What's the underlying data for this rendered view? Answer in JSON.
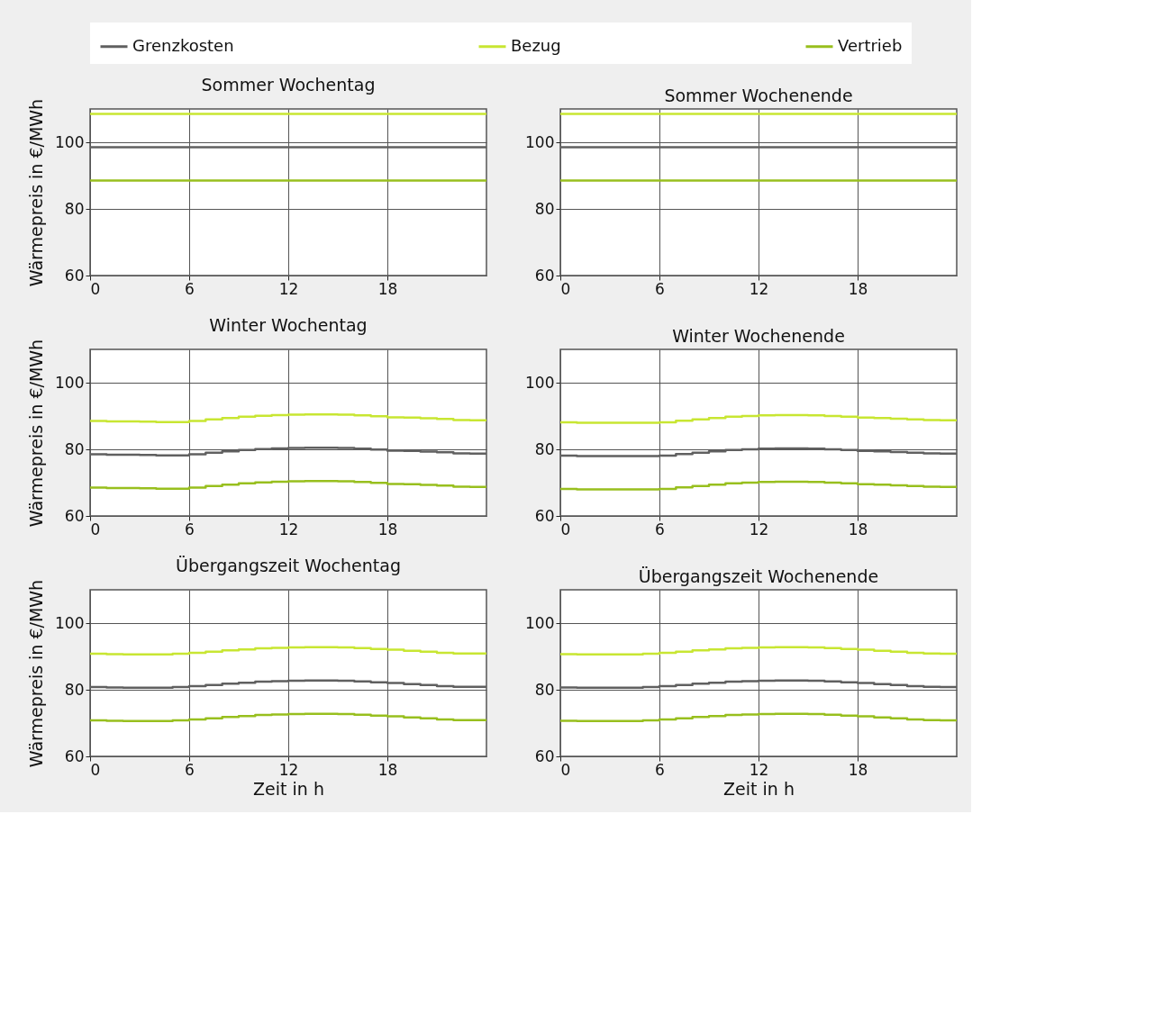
{
  "chart_data": [
    {
      "type": "step",
      "title": "Sommer Wochentag",
      "ylabel": "Wärmepreis in €/MWh",
      "legend": "top",
      "grid": true,
      "xlim": [
        0,
        24
      ],
      "xticks": [
        0,
        6,
        12,
        18
      ],
      "ylim": [
        60,
        110
      ],
      "yticks": [
        60,
        80,
        100
      ],
      "x": [
        0,
        1,
        2,
        3,
        4,
        5,
        6,
        7,
        8,
        9,
        10,
        11,
        12,
        13,
        14,
        15,
        16,
        17,
        18,
        19,
        20,
        21,
        22,
        23,
        24
      ],
      "series": [
        {
          "name": "Grenzkosten",
          "color": "#606060",
          "values": [
            98.5,
            98.5,
            98.5,
            98.5,
            98.5,
            98.5,
            98.5,
            98.5,
            98.5,
            98.5,
            98.5,
            98.5,
            98.5,
            98.5,
            98.5,
            98.5,
            98.5,
            98.5,
            98.5,
            98.5,
            98.5,
            98.5,
            98.5,
            98.5,
            98.5
          ]
        },
        {
          "name": "Bezug",
          "color": "#c8e632",
          "values": [
            108.5,
            108.5,
            108.5,
            108.5,
            108.5,
            108.5,
            108.5,
            108.5,
            108.5,
            108.5,
            108.5,
            108.5,
            108.5,
            108.5,
            108.5,
            108.5,
            108.5,
            108.5,
            108.5,
            108.5,
            108.5,
            108.5,
            108.5,
            108.5,
            108.5
          ]
        },
        {
          "name": "Vertrieb",
          "color": "#98bf1e",
          "values": [
            88.5,
            88.5,
            88.5,
            88.5,
            88.5,
            88.5,
            88.5,
            88.5,
            88.5,
            88.5,
            88.5,
            88.5,
            88.5,
            88.5,
            88.5,
            88.5,
            88.5,
            88.5,
            88.5,
            88.5,
            88.5,
            88.5,
            88.5,
            88.5,
            88.5
          ]
        }
      ]
    },
    {
      "type": "step",
      "title": "Sommer Wochenende",
      "grid": true,
      "xlim": [
        0,
        24
      ],
      "xticks": [
        0,
        6,
        12,
        18
      ],
      "ylim": [
        60,
        110
      ],
      "yticks": [
        60,
        80,
        100
      ],
      "x": [
        0,
        1,
        2,
        3,
        4,
        5,
        6,
        7,
        8,
        9,
        10,
        11,
        12,
        13,
        14,
        15,
        16,
        17,
        18,
        19,
        20,
        21,
        22,
        23,
        24
      ],
      "series": [
        {
          "name": "Grenzkosten",
          "color": "#606060",
          "values": [
            98.5,
            98.5,
            98.5,
            98.5,
            98.5,
            98.5,
            98.5,
            98.5,
            98.5,
            98.5,
            98.5,
            98.5,
            98.5,
            98.5,
            98.5,
            98.5,
            98.5,
            98.5,
            98.5,
            98.5,
            98.5,
            98.5,
            98.5,
            98.5,
            98.5
          ]
        },
        {
          "name": "Bezug",
          "color": "#c8e632",
          "values": [
            108.5,
            108.5,
            108.5,
            108.5,
            108.5,
            108.5,
            108.5,
            108.5,
            108.5,
            108.5,
            108.5,
            108.5,
            108.5,
            108.5,
            108.5,
            108.5,
            108.5,
            108.5,
            108.5,
            108.5,
            108.5,
            108.5,
            108.5,
            108.5,
            108.5
          ]
        },
        {
          "name": "Vertrieb",
          "color": "#98bf1e",
          "values": [
            88.5,
            88.5,
            88.5,
            88.5,
            88.5,
            88.5,
            88.5,
            88.5,
            88.5,
            88.5,
            88.5,
            88.5,
            88.5,
            88.5,
            88.5,
            88.5,
            88.5,
            88.5,
            88.5,
            88.5,
            88.5,
            88.5,
            88.5,
            88.5,
            88.5
          ]
        }
      ]
    },
    {
      "type": "step",
      "title": "Winter Wochentag",
      "ylabel": "Wärmepreis in €/MWh",
      "grid": true,
      "xlim": [
        0,
        24
      ],
      "xticks": [
        0,
        6,
        12,
        18
      ],
      "ylim": [
        60,
        110
      ],
      "yticks": [
        60,
        80,
        100
      ],
      "x": [
        0,
        1,
        2,
        3,
        4,
        5,
        6,
        7,
        8,
        9,
        10,
        11,
        12,
        13,
        14,
        15,
        16,
        17,
        18,
        19,
        20,
        21,
        22,
        23,
        24
      ],
      "series": [
        {
          "name": "Grenzkosten",
          "color": "#606060",
          "values": [
            78.5,
            78.4,
            78.4,
            78.3,
            78.2,
            78.2,
            78.5,
            79.0,
            79.4,
            79.8,
            80.1,
            80.3,
            80.4,
            80.5,
            80.5,
            80.4,
            80.2,
            79.9,
            79.6,
            79.5,
            79.3,
            79.1,
            78.8,
            78.7,
            78.7
          ]
        },
        {
          "name": "Bezug",
          "color": "#c8e632",
          "values": [
            88.5,
            88.4,
            88.4,
            88.3,
            88.2,
            88.2,
            88.5,
            89.0,
            89.4,
            89.8,
            90.1,
            90.3,
            90.4,
            90.5,
            90.5,
            90.4,
            90.2,
            89.9,
            89.6,
            89.5,
            89.3,
            89.1,
            88.8,
            88.7,
            88.7
          ]
        },
        {
          "name": "Vertrieb",
          "color": "#98bf1e",
          "values": [
            68.5,
            68.4,
            68.4,
            68.3,
            68.2,
            68.2,
            68.5,
            69.0,
            69.4,
            69.8,
            70.1,
            70.3,
            70.4,
            70.5,
            70.5,
            70.4,
            70.2,
            69.9,
            69.6,
            69.5,
            69.3,
            69.1,
            68.8,
            68.7,
            68.7
          ]
        }
      ]
    },
    {
      "type": "step",
      "title": "Winter Wochenende",
      "grid": true,
      "xlim": [
        0,
        24
      ],
      "xticks": [
        0,
        6,
        12,
        18
      ],
      "ylim": [
        60,
        110
      ],
      "yticks": [
        60,
        80,
        100
      ],
      "x": [
        0,
        1,
        2,
        3,
        4,
        5,
        6,
        7,
        8,
        9,
        10,
        11,
        12,
        13,
        14,
        15,
        16,
        17,
        18,
        19,
        20,
        21,
        22,
        23,
        24
      ],
      "series": [
        {
          "name": "Grenzkosten",
          "color": "#606060",
          "values": [
            78.1,
            78.0,
            78.0,
            78.0,
            78.0,
            78.0,
            78.1,
            78.6,
            79.0,
            79.4,
            79.8,
            80.0,
            80.2,
            80.3,
            80.3,
            80.2,
            80.0,
            79.8,
            79.5,
            79.4,
            79.2,
            79.0,
            78.8,
            78.7,
            78.7
          ]
        },
        {
          "name": "Bezug",
          "color": "#c8e632",
          "values": [
            88.1,
            88.0,
            88.0,
            88.0,
            88.0,
            88.0,
            88.1,
            88.6,
            89.0,
            89.4,
            89.8,
            90.0,
            90.2,
            90.3,
            90.3,
            90.2,
            90.0,
            89.8,
            89.5,
            89.4,
            89.2,
            89.0,
            88.8,
            88.7,
            88.7
          ]
        },
        {
          "name": "Vertrieb",
          "color": "#98bf1e",
          "values": [
            68.1,
            68.0,
            68.0,
            68.0,
            68.0,
            68.0,
            68.1,
            68.6,
            69.0,
            69.4,
            69.8,
            70.0,
            70.2,
            70.3,
            70.3,
            70.2,
            70.0,
            69.8,
            69.5,
            69.4,
            69.2,
            69.0,
            68.8,
            68.7,
            68.7
          ]
        }
      ]
    },
    {
      "type": "step",
      "title": "Übergangszeit Wochentag",
      "xlabel": "Zeit in h",
      "ylabel": "Wärmepreis in €/MWh",
      "grid": true,
      "xlim": [
        0,
        24
      ],
      "xticks": [
        0,
        6,
        12,
        18
      ],
      "ylim": [
        60,
        110
      ],
      "yticks": [
        60,
        80,
        100
      ],
      "x": [
        0,
        1,
        2,
        3,
        4,
        5,
        6,
        7,
        8,
        9,
        10,
        11,
        12,
        13,
        14,
        15,
        16,
        17,
        18,
        19,
        20,
        21,
        22,
        23,
        24
      ],
      "series": [
        {
          "name": "Grenzkosten",
          "color": "#606060",
          "values": [
            80.8,
            80.7,
            80.6,
            80.6,
            80.6,
            80.8,
            81.1,
            81.4,
            81.8,
            82.1,
            82.4,
            82.6,
            82.7,
            82.8,
            82.8,
            82.7,
            82.5,
            82.2,
            82.0,
            81.7,
            81.4,
            81.1,
            80.9,
            80.9,
            80.9
          ]
        },
        {
          "name": "Bezug",
          "color": "#c8e632",
          "values": [
            90.8,
            90.7,
            90.6,
            90.6,
            90.6,
            90.8,
            91.1,
            91.4,
            91.8,
            92.1,
            92.4,
            92.6,
            92.7,
            92.8,
            92.8,
            92.7,
            92.5,
            92.2,
            92.0,
            91.7,
            91.4,
            91.1,
            90.9,
            90.9,
            90.9
          ]
        },
        {
          "name": "Vertrieb",
          "color": "#98bf1e",
          "values": [
            70.8,
            70.7,
            70.6,
            70.6,
            70.6,
            70.8,
            71.1,
            71.4,
            71.8,
            72.1,
            72.4,
            72.6,
            72.7,
            72.8,
            72.8,
            72.7,
            72.5,
            72.2,
            72.0,
            71.7,
            71.4,
            71.1,
            70.9,
            70.9,
            70.9
          ]
        }
      ]
    },
    {
      "type": "step",
      "title": "Übergangszeit Wochenende",
      "xlabel": "Zeit in h",
      "grid": true,
      "xlim": [
        0,
        24
      ],
      "xticks": [
        0,
        6,
        12,
        18
      ],
      "ylim": [
        60,
        110
      ],
      "yticks": [
        60,
        80,
        100
      ],
      "x": [
        0,
        1,
        2,
        3,
        4,
        5,
        6,
        7,
        8,
        9,
        10,
        11,
        12,
        13,
        14,
        15,
        16,
        17,
        18,
        19,
        20,
        21,
        22,
        23,
        24
      ],
      "series": [
        {
          "name": "Grenzkosten",
          "color": "#606060",
          "values": [
            80.7,
            80.6,
            80.6,
            80.6,
            80.6,
            80.8,
            81.1,
            81.4,
            81.8,
            82.1,
            82.4,
            82.6,
            82.7,
            82.8,
            82.8,
            82.7,
            82.5,
            82.2,
            82.0,
            81.7,
            81.4,
            81.1,
            80.9,
            80.8,
            80.8
          ]
        },
        {
          "name": "Bezug",
          "color": "#c8e632",
          "values": [
            90.7,
            90.6,
            90.6,
            90.6,
            90.6,
            90.8,
            91.1,
            91.4,
            91.8,
            92.1,
            92.4,
            92.6,
            92.7,
            92.8,
            92.8,
            92.7,
            92.5,
            92.2,
            92.0,
            91.7,
            91.4,
            91.1,
            90.9,
            90.8,
            90.8
          ]
        },
        {
          "name": "Vertrieb",
          "color": "#98bf1e",
          "values": [
            70.7,
            70.6,
            70.6,
            70.6,
            70.6,
            70.8,
            71.1,
            71.4,
            71.8,
            72.1,
            72.4,
            72.6,
            72.7,
            72.8,
            72.8,
            72.7,
            72.5,
            72.2,
            72.0,
            71.7,
            71.4,
            71.1,
            70.9,
            70.8,
            70.8
          ]
        }
      ]
    }
  ]
}
